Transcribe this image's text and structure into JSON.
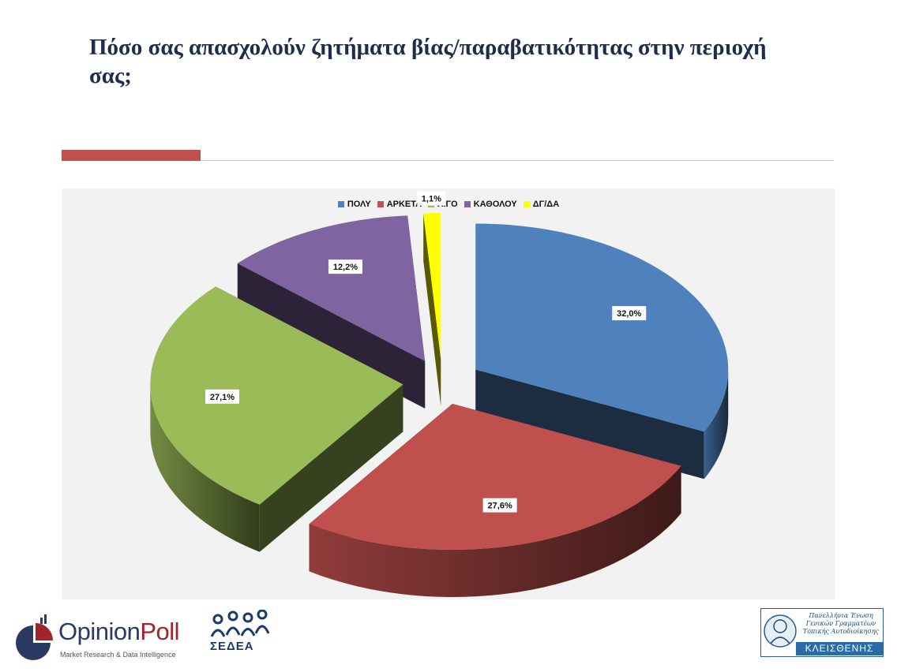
{
  "slide": {
    "title": "Πόσο σας απασχολούν ζητήματα βίας/παραβατικότητας στην περιοχή σας;"
  },
  "chart_data": {
    "type": "pie",
    "categories": [
      "ΠΟΛΥ",
      "ΑΡΚΕΤΑ",
      "ΛΙΓΟ",
      "ΚΑΘΟΛΟΥ",
      "ΔΓ/ΔΑ"
    ],
    "values": [
      32.0,
      27.6,
      27.1,
      12.2,
      1.1
    ],
    "data_labels": [
      "32,0%",
      "27,6%",
      "27,1%",
      "12,2%",
      "1,1%"
    ],
    "colors": [
      "#4f81bd",
      "#c0504d",
      "#9bbb59",
      "#8064a2",
      "#ffff00"
    ],
    "legend_position": "top",
    "style": "3d-exploded"
  },
  "footer": {
    "opinionpoll": {
      "name_part1": "Opinion",
      "name_part2": "Poll",
      "tagline": "Market Research & Data Intelligence"
    },
    "sedea": {
      "name": "ΣΕΔΕΑ"
    },
    "kleisthenis": {
      "lines": [
        "Πανελλήνια Ένωση",
        "Γενικών Γραμματέων",
        "Τοπικής Αυτοδιοίκησης"
      ],
      "name": "ΚΛΕΙΣΘΕΝΗΣ"
    }
  }
}
